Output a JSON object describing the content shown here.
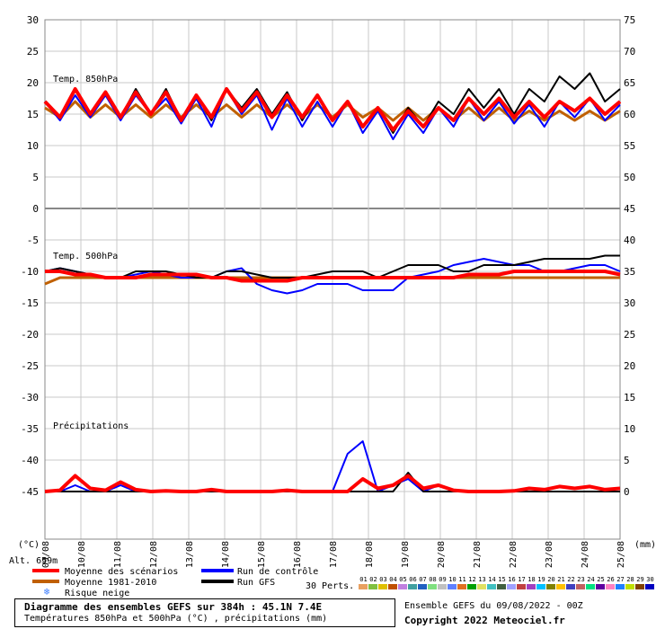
{
  "chart_data": {
    "type": "line",
    "left_axis": {
      "unit": "(°C)",
      "ticks": [
        "30",
        "25",
        "20",
        "15",
        "10",
        "5",
        "0",
        "-5",
        "-10",
        "-15",
        "-20",
        "-25",
        "-30",
        "-35",
        "-40",
        "-45"
      ]
    },
    "right_axis": {
      "unit": "(mm)",
      "ticks": [
        "75",
        "70",
        "65",
        "60",
        "55",
        "50",
        "45",
        "40",
        "35",
        "30",
        "25",
        "20",
        "15",
        "10",
        "5",
        "0"
      ]
    },
    "x_unit": "(°C)",
    "dates": [
      "09/08",
      "10/08",
      "11/08",
      "12/08",
      "13/08",
      "14/08",
      "15/08",
      "16/08",
      "17/08",
      "18/08",
      "19/08",
      "20/08",
      "21/08",
      "22/08",
      "23/08",
      "24/08",
      "25/08"
    ],
    "panels": {
      "t850": {
        "label": "Temp. 850hPa",
        "range_c": [
          12,
          22
        ]
      },
      "t500": {
        "label": "Temp. 500hPa",
        "range_c": [
          -20,
          -5
        ]
      },
      "precip": {
        "label": "Précipitations",
        "range_mm": [
          0,
          25
        ]
      }
    },
    "series": [
      {
        "name": "Moyenne des scénarios",
        "color": "#ff0000",
        "t850": [
          17,
          14.5,
          19,
          15,
          18.5,
          14.5,
          18.5,
          15,
          18.5,
          14,
          18,
          14.5,
          19,
          15.5,
          18.5,
          14.5,
          18,
          14.5,
          18,
          14,
          17,
          13,
          16,
          12.5,
          15.5,
          13,
          16,
          14,
          17.5,
          15,
          17.5,
          14.5,
          17,
          14.5,
          17,
          15.5,
          17.5,
          15,
          17
        ],
        "t500": [
          -10,
          -10,
          -10.5,
          -10.5,
          -11,
          -11,
          -11,
          -10.5,
          -10.5,
          -10.5,
          -10.5,
          -11,
          -11,
          -11.5,
          -11.5,
          -11.5,
          -11.5,
          -11,
          -11,
          -11,
          -11,
          -11,
          -11,
          -11,
          -11,
          -11,
          -11,
          -11,
          -10.5,
          -10.5,
          -10.5,
          -10,
          -10,
          -10,
          -10,
          -10,
          -10,
          -10,
          -10.5
        ],
        "precip": [
          0,
          0.2,
          2.5,
          0.5,
          0.2,
          1.5,
          0.3,
          0,
          0.1,
          0,
          0,
          0.3,
          0,
          0,
          0,
          0,
          0.2,
          0,
          0,
          0,
          0,
          2,
          0.5,
          1,
          2.5,
          0.5,
          1,
          0.2,
          0,
          0,
          0,
          0.1,
          0.5,
          0.3,
          0.8,
          0.5,
          0.8,
          0.3,
          0.5
        ]
      },
      {
        "name": "Moyenne 1981-2010",
        "color": "#c06000",
        "t850": [
          16,
          14.5,
          17,
          14.5,
          16.5,
          14.5,
          16.5,
          14.5,
          16.5,
          14.5,
          16.5,
          14.5,
          16.5,
          14.5,
          16.5,
          14.5,
          16.5,
          14.5,
          16.5,
          14.5,
          16.5,
          14.5,
          16,
          14,
          16,
          14,
          16,
          14,
          16,
          14,
          16,
          14,
          15.5,
          14,
          15.5,
          14,
          15.5,
          14,
          15.5
        ],
        "t500": [
          -12,
          -11,
          -11,
          -11,
          -11,
          -11,
          -11,
          -11,
          -11,
          -11,
          -11,
          -11,
          -11,
          -11,
          -11,
          -11,
          -11,
          -11,
          -11,
          -11,
          -11,
          -11,
          -11,
          -11,
          -11,
          -11,
          -11,
          -11,
          -11,
          -11,
          -11,
          -11,
          -11,
          -11,
          -11,
          -11,
          -11,
          -11,
          -11
        ]
      },
      {
        "name": "Run de contrôle",
        "color": "#0000ff",
        "t850": [
          17,
          14,
          18,
          14.5,
          18,
          14,
          18,
          15,
          17.5,
          13.5,
          17.5,
          13,
          19,
          15,
          18,
          12.5,
          17.5,
          13,
          17,
          13,
          17,
          12,
          15.5,
          11,
          15,
          12,
          16,
          13,
          17.5,
          14,
          17,
          13.5,
          16.5,
          13,
          17,
          14.5,
          17.5,
          14,
          16.5
        ],
        "t500": [
          -10,
          -9.5,
          -10,
          -10.5,
          -11,
          -11,
          -10.5,
          -10,
          -10.5,
          -11,
          -11,
          -11,
          -10,
          -9.5,
          -12,
          -13,
          -13.5,
          -13,
          -12,
          -12,
          -12,
          -13,
          -13,
          -13,
          -11,
          -10.5,
          -10,
          -9,
          -8.5,
          -8,
          -8.5,
          -9,
          -9,
          -10,
          -10,
          -9.5,
          -9,
          -9,
          -10
        ],
        "precip": [
          0,
          0,
          1,
          0,
          0,
          1,
          0,
          0,
          0,
          0,
          0,
          0,
          0,
          0,
          0,
          0,
          0,
          0,
          0,
          0,
          6,
          8,
          0,
          1,
          2,
          0,
          1,
          0,
          0,
          0,
          0,
          0,
          0,
          0,
          0,
          0,
          0,
          0,
          0
        ]
      },
      {
        "name": "Run GFS",
        "color": "#000000",
        "t850": [
          17,
          14.5,
          19,
          15,
          18.5,
          14.5,
          19,
          15,
          19,
          14,
          18,
          14,
          19,
          16,
          19,
          15,
          18.5,
          14,
          18,
          14,
          17,
          13,
          16,
          12,
          16,
          13,
          17,
          15,
          19,
          16,
          19,
          15,
          19,
          17,
          21,
          19,
          21.5,
          17,
          19
        ],
        "t500": [
          -10,
          -9.5,
          -10,
          -10.5,
          -11,
          -11,
          -10,
          -10,
          -10,
          -10.5,
          -11,
          -11,
          -10,
          -10,
          -10.5,
          -11,
          -11,
          -11,
          -10.5,
          -10,
          -10,
          -10,
          -11,
          -10,
          -9,
          -9,
          -9,
          -10,
          -10,
          -9,
          -9,
          -9,
          -8.5,
          -8,
          -8,
          -8,
          -8,
          -7.5,
          -7.5
        ],
        "precip": [
          0,
          0,
          0,
          0,
          0,
          0,
          0,
          0,
          0,
          0,
          0,
          0,
          0,
          0,
          0,
          0,
          0,
          0,
          0,
          0,
          0,
          0,
          0,
          0,
          3,
          0,
          0,
          0,
          0,
          0,
          0,
          0,
          0,
          0,
          0,
          0,
          0,
          0,
          0
        ]
      }
    ],
    "legend_extra": {
      "snow_label": "Risque neige",
      "perts_label": "30 Perts."
    },
    "member_labels": [
      "01",
      "02",
      "03",
      "04",
      "05",
      "06",
      "07",
      "08",
      "09",
      "10",
      "11",
      "12",
      "13",
      "14",
      "15",
      "16",
      "17",
      "18",
      "19",
      "20",
      "21",
      "22",
      "23",
      "24",
      "25",
      "26",
      "27",
      "28",
      "29",
      "30"
    ],
    "member_colors": [
      "#e8a060",
      "#80c040",
      "#e0c000",
      "#c05000",
      "#c080e0",
      "#40a0a0",
      "#2060c0",
      "#80e080",
      "#c0c0c0",
      "#6080ff",
      "#e07020",
      "#00a000",
      "#e0e060",
      "#40c0c0",
      "#406040",
      "#a0a0ff",
      "#c04040",
      "#a040c0",
      "#00c0ff",
      "#808000",
      "#ffc000",
      "#4040c0",
      "#c06060",
      "#00e080",
      "#6000a0",
      "#ff80c0",
      "#2080ff",
      "#c0e000",
      "#804000",
      "#0000c0"
    ]
  },
  "footer": {
    "alt_label": "Alt. 659m",
    "title": "Diagramme des ensembles GEFS sur 384h : 45.1N 7.4E",
    "subtitle": "Températures 850hPa et 500hPa (°C) , précipitations (mm)",
    "run_info": "Ensemble GEFS du 09/08/2022 - 00Z",
    "copyright": "Copyright 2022 Meteociel.fr"
  }
}
